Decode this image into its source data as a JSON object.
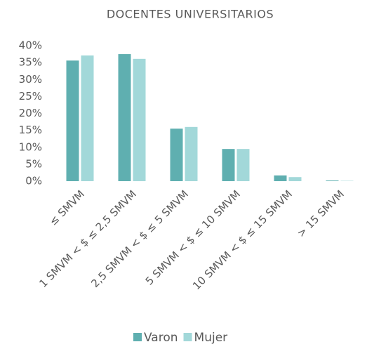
{
  "chart_data": {
    "type": "bar",
    "title": "DOCENTES UNIVERSITARIOS",
    "categories": [
      "≤ SMVM",
      "1 SMVM < $ ≤ 2,5 SMVM",
      "2,5 SMVM < $ ≤ 5 SMVM",
      "5 SMVM < $ ≤ 10 SMVM",
      "10 SMVM < $ ≤ 15 SMVM",
      "> 15 SMVM"
    ],
    "series": [
      {
        "name": "Varon",
        "color": "#5fafb0",
        "values": [
          35.6,
          37.5,
          15.5,
          9.5,
          1.7,
          0.2
        ]
      },
      {
        "name": "Mujer",
        "color": "#a2d8d9",
        "values": [
          37.1,
          36.1,
          16.0,
          9.5,
          1.2,
          0.1
        ]
      }
    ],
    "ylim": [
      0,
      40
    ],
    "yticks": [
      {
        "value": 0,
        "label": "0%"
      },
      {
        "value": 5,
        "label": "5%"
      },
      {
        "value": 10,
        "label": "10%"
      },
      {
        "value": 15,
        "label": "15%"
      },
      {
        "value": 20,
        "label": "20%"
      },
      {
        "value": 25,
        "label": "25%"
      },
      {
        "value": 30,
        "label": "30%"
      },
      {
        "value": 35,
        "label": "35%"
      },
      {
        "value": 40,
        "label": "40%"
      }
    ],
    "grid": false,
    "legend": "bottom"
  }
}
